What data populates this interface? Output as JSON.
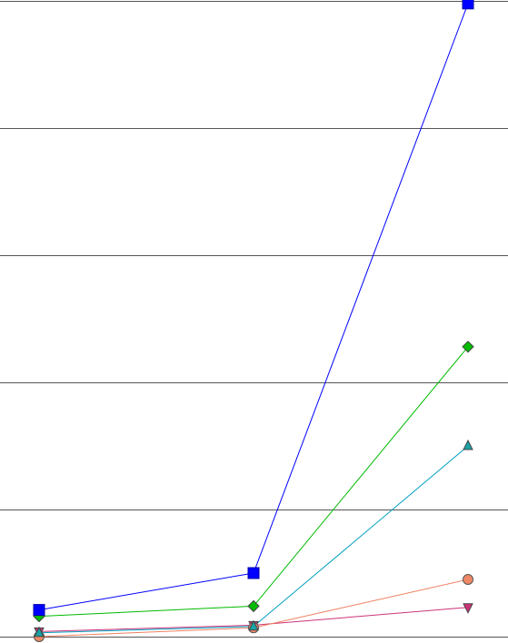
{
  "chart_data": {
    "type": "line",
    "title": "",
    "xlabel": "",
    "ylabel": "",
    "x": [
      1,
      2,
      3
    ],
    "ylim": [
      0,
      5
    ],
    "grid": true,
    "legend": "none",
    "series": [
      {
        "marker": "square",
        "color": "#0000ff",
        "fill": "#0000ff",
        "values": [
          0.21,
          0.5,
          4.98
        ]
      },
      {
        "marker": "diamond",
        "color": "#00bb00",
        "fill": "#00bb00",
        "values": [
          0.16,
          0.24,
          2.28
        ]
      },
      {
        "marker": "triangle-up",
        "color": "#00a0c0",
        "fill": "#1aa3a6",
        "values": [
          0.03,
          0.08,
          1.5
        ]
      },
      {
        "marker": "circle",
        "color": "#f08060",
        "fill": "#ee8866",
        "values": [
          0.0,
          0.07,
          0.45
        ]
      },
      {
        "marker": "triangle-down",
        "color": "#cc3377",
        "fill": "#cc3377",
        "values": [
          0.04,
          0.09,
          0.23
        ]
      }
    ]
  }
}
